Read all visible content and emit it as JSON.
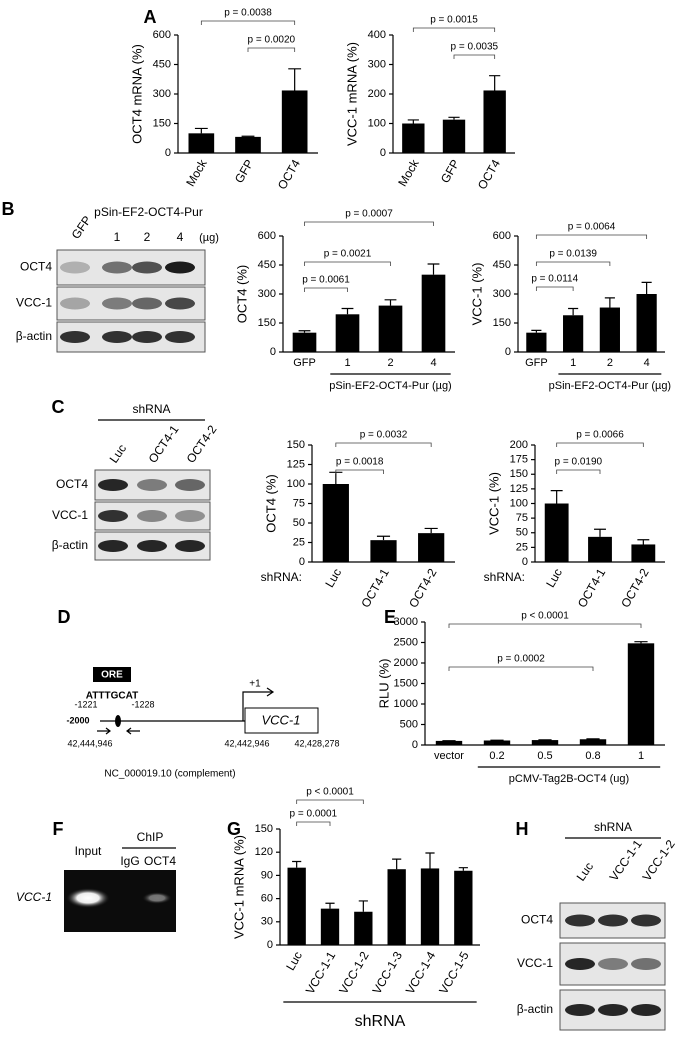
{
  "panels": [
    "A",
    "B",
    "C",
    "D",
    "E",
    "F",
    "G",
    "H"
  ],
  "chart_data": [
    {
      "type": "bar",
      "ylabel": "OCT4  mRNA (%)",
      "categories": [
        "Mock",
        "GFP",
        "OCT4"
      ],
      "values": [
        100,
        82,
        318
      ],
      "errors": [
        25,
        3,
        110
      ],
      "color": "#000000",
      "ylim": [
        0,
        600
      ],
      "yticks": [
        0,
        150,
        300,
        450,
        600
      ],
      "comparisons": [
        {
          "label": "p = 0.0020",
          "groups": [
            "GFP",
            "OCT4"
          ]
        },
        {
          "label": "p = 0.0038",
          "groups": [
            "Mock",
            "OCT4"
          ]
        }
      ]
    },
    {
      "type": "bar",
      "ylabel": "VCC-1  mRNA (%)",
      "categories": [
        "Mock",
        "GFP",
        "OCT4"
      ],
      "values": [
        100,
        113,
        212
      ],
      "errors": [
        12,
        8,
        50
      ],
      "color": "#000000",
      "ylim": [
        0,
        400
      ],
      "yticks": [
        0,
        100,
        200,
        300,
        400
      ],
      "comparisons": [
        {
          "label": "p = 0.0035",
          "groups": [
            "GFP",
            "OCT4"
          ]
        },
        {
          "label": "p = 0.0015",
          "groups": [
            "Mock",
            "OCT4"
          ]
        }
      ]
    },
    {
      "type": "bar",
      "ylabel": "OCT4 (%)",
      "xlabel": "pSin-EF2-OCT4-Pur (µg)",
      "categories": [
        "GFP",
        "1",
        "2",
        "4"
      ],
      "values": [
        100,
        195,
        240,
        400
      ],
      "errors": [
        10,
        30,
        30,
        55
      ],
      "color": "#000000",
      "ylim": [
        0,
        600
      ],
      "yticks": [
        0,
        150,
        300,
        450,
        600
      ],
      "comparisons": [
        {
          "label": "p = 0.0061",
          "groups": [
            "GFP",
            "1"
          ]
        },
        {
          "label": "p = 0.0021",
          "groups": [
            "GFP",
            "2"
          ]
        },
        {
          "label": "p = 0.0007",
          "groups": [
            "GFP",
            "4"
          ]
        }
      ]
    },
    {
      "type": "bar",
      "ylabel": "VCC-1 (%)",
      "xlabel": "pSin-EF2-OCT4-Pur (µg)",
      "categories": [
        "GFP",
        "1",
        "2",
        "4"
      ],
      "values": [
        100,
        190,
        230,
        300
      ],
      "errors": [
        12,
        35,
        50,
        60
      ],
      "color": "#000000",
      "ylim": [
        0,
        600
      ],
      "yticks": [
        0,
        150,
        300,
        450,
        600
      ],
      "comparisons": [
        {
          "label": "p = 0.0114",
          "groups": [
            "GFP",
            "1"
          ]
        },
        {
          "label": "p = 0.0139",
          "groups": [
            "GFP",
            "2"
          ]
        },
        {
          "label": "p = 0.0064",
          "groups": [
            "GFP",
            "4"
          ]
        }
      ]
    },
    {
      "type": "bar",
      "ylabel": "OCT4 (%)",
      "xlabel": "shRNA:",
      "categories": [
        "Luc",
        "OCT4-1",
        "OCT4-2"
      ],
      "values": [
        100,
        28,
        37
      ],
      "errors": [
        15,
        5,
        6
      ],
      "color": "#000000",
      "ylim": [
        0,
        150
      ],
      "yticks": [
        0,
        25,
        50,
        75,
        100,
        125,
        150
      ],
      "comparisons": [
        {
          "label": "p = 0.0018",
          "groups": [
            "Luc",
            "OCT4-1"
          ]
        },
        {
          "label": "p = 0.0032",
          "groups": [
            "Luc",
            "OCT4-2"
          ]
        }
      ]
    },
    {
      "type": "bar",
      "ylabel": "VCC-1 (%)",
      "xlabel": "shRNA:",
      "categories": [
        "Luc",
        "OCT4-1",
        "OCT4-2"
      ],
      "values": [
        100,
        43,
        30
      ],
      "errors": [
        22,
        13,
        8
      ],
      "color": "#000000",
      "ylim": [
        0,
        200
      ],
      "yticks": [
        0,
        25,
        50,
        75,
        100,
        125,
        150,
        175,
        200
      ],
      "comparisons": [
        {
          "label": "p = 0.0190",
          "groups": [
            "Luc",
            "OCT4-1"
          ]
        },
        {
          "label": "p = 0.0066",
          "groups": [
            "Luc",
            "OCT4-2"
          ]
        }
      ]
    },
    {
      "type": "bar",
      "ylabel": "RLU (%)",
      "xlabel": "pCMV-Tag2B-OCT4 (ug)",
      "categories": [
        "vector",
        "0.2",
        "0.5",
        "0.8",
        "1"
      ],
      "values": [
        100,
        110,
        120,
        140,
        2480
      ],
      "errors": [
        5,
        5,
        5,
        10,
        40
      ],
      "color": "#000000",
      "ylim": [
        0,
        3000
      ],
      "yticks": [
        0,
        500,
        1000,
        1500,
        2000,
        2500,
        3000
      ],
      "comparisons": [
        {
          "label": "p = 0.0002",
          "groups": [
            "vector",
            "0.8"
          ]
        },
        {
          "label": "p < 0.0001",
          "groups": [
            "vector",
            "1"
          ]
        }
      ]
    },
    {
      "type": "bar",
      "ylabel": "VCC-1  mRNA (%)",
      "xlabel": "shRNA",
      "categories": [
        "Luc",
        "VCC-1-1",
        "VCC-1-2",
        "VCC-1-3",
        "VCC-1-4",
        "VCC-1-5"
      ],
      "values": [
        100,
        47,
        43,
        98,
        99,
        96
      ],
      "errors": [
        8,
        7,
        14,
        13,
        20,
        4
      ],
      "color": "#000000",
      "ylim": [
        0,
        150
      ],
      "yticks": [
        0,
        30,
        60,
        90,
        120,
        150
      ],
      "comparisons": [
        {
          "label": "p = 0.0001",
          "groups": [
            "Luc",
            "VCC-1-1"
          ]
        },
        {
          "label": "p < 0.0001",
          "groups": [
            "Luc",
            "VCC-1-2"
          ]
        }
      ]
    }
  ],
  "blot_B": {
    "header": "pSin-EF2-OCT4-Pur",
    "unit": "(µg)",
    "lanes": [
      "GFP",
      "1",
      "2",
      "4"
    ],
    "rows": [
      "OCT4",
      "VCC-1",
      "β-actin"
    ]
  },
  "blot_C": {
    "header": "shRNA",
    "lanes": [
      "Luc",
      "OCT4-1",
      "OCT4-2"
    ],
    "rows": [
      "OCT4",
      "VCC-1",
      "β-actin"
    ]
  },
  "blot_H": {
    "header": "shRNA",
    "lanes": [
      "Luc",
      "VCC-1-1",
      "VCC-1-2"
    ],
    "rows": [
      "OCT4",
      "VCC-1",
      "β-actin"
    ]
  },
  "diagram_D": {
    "element": "ORE",
    "sequence": "ATTTGCAT",
    "left_pos": "-1221",
    "right_pos": "-1228",
    "tss": "+1",
    "start": "-2000",
    "gene": "VCC-1",
    "coords": [
      "42,444,946",
      "42,442,946",
      "42,428,278"
    ],
    "reference": "NC_000019.10 (complement)"
  },
  "gel_F": {
    "lanes": [
      "Input",
      "IgG",
      "OCT4"
    ],
    "group": "ChIP",
    "target": "VCC-1"
  }
}
